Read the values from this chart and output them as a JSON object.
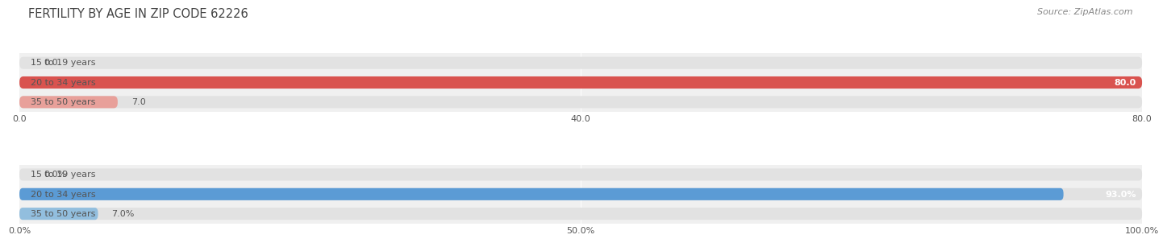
{
  "title": "FERTILITY BY AGE IN ZIP CODE 62226",
  "source": "Source: ZipAtlas.com",
  "top_chart": {
    "categories": [
      "15 to 19 years",
      "20 to 34 years",
      "35 to 50 years"
    ],
    "values": [
      0.0,
      80.0,
      7.0
    ],
    "bar_color_fill": [
      "#e8a09a",
      "#d9534f",
      "#e8a09a"
    ],
    "xlim": [
      0,
      80.0
    ],
    "xticks": [
      0.0,
      40.0,
      80.0
    ],
    "xtick_labels": [
      "0.0",
      "40.0",
      "80.0"
    ],
    "value_labels": [
      "0.0",
      "80.0",
      "7.0"
    ],
    "label_inside": [
      false,
      true,
      false
    ]
  },
  "bottom_chart": {
    "categories": [
      "15 to 19 years",
      "20 to 34 years",
      "35 to 50 years"
    ],
    "values": [
      0.0,
      93.0,
      7.0
    ],
    "bar_color_fill": [
      "#92bede",
      "#5b9bd5",
      "#92bede"
    ],
    "xlim": [
      0,
      100.0
    ],
    "xticks": [
      0.0,
      50.0,
      100.0
    ],
    "xtick_labels": [
      "0.0%",
      "50.0%",
      "100.0%"
    ],
    "value_labels": [
      "0.0%",
      "93.0%",
      "7.0%"
    ],
    "label_inside": [
      false,
      true,
      false
    ]
  },
  "bg_color": "#f0f0f0",
  "bar_bg_color": "#e2e2e2",
  "label_color": "#555555",
  "title_color": "#444444",
  "source_color": "#888888",
  "bar_height": 0.62,
  "label_fontsize": 8.0,
  "tick_fontsize": 8.0,
  "title_fontsize": 10.5
}
